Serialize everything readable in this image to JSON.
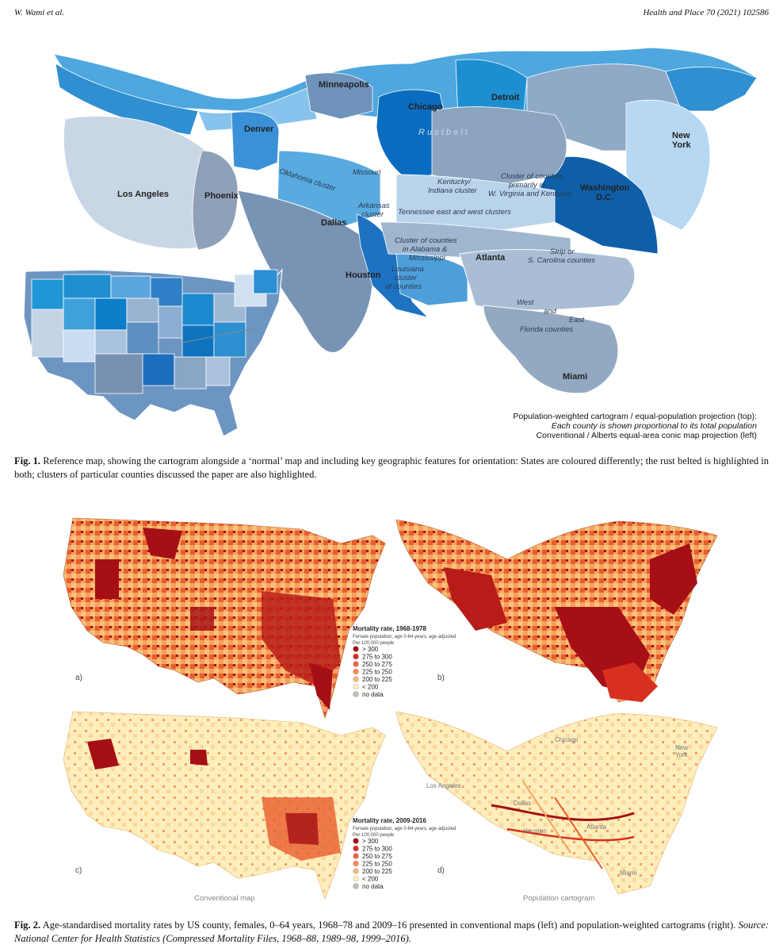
{
  "header": {
    "left": "W. Wami et al.",
    "right": "Health and Place 70 (2021) 102586"
  },
  "fig1": {
    "cities": {
      "minneapolis": "Minneapolis",
      "chicago": "Chicago",
      "detroit": "Detroit",
      "denver": "Denver",
      "new_york": "New\nYork",
      "los_angeles": "Los Angeles",
      "phoenix": "Phoenix",
      "washington": "Washington\nD.C.",
      "dallas": "Dallas",
      "houston": "Houston",
      "atlanta": "Atlanta",
      "miami": "Miami"
    },
    "clusters": {
      "rust_belt": "R u s t   b e l t",
      "oklahoma": "Oklahoma cluster",
      "missouri": "Missouri",
      "kentucky": "Kentucky/\nIndiana cluster",
      "wv": "Cluster of counties\nprimarily in\nW. Virginia and Kentucky",
      "arkansas": "Arkansas\ncluster",
      "tennessee": "Tennessee east and west clusters",
      "alabama": "Cluster of counties\nin Alabama &\nMississippi",
      "louisiana": "Louisiana\ncluster\nof counties",
      "carolina": "Strip or\nS. Carolina counties",
      "florida_west": "West",
      "florida_and": "and",
      "florida_east": "East",
      "florida_counties": "Florida counties"
    },
    "legend": {
      "line1": "Population-weighted cartogram / equal-population projection (top):",
      "line2": "Each county is shown proportional to its total population",
      "line3": "Conventional / Alberts equal-area conic map projection (left)"
    },
    "caption_label": "Fig. 1.",
    "caption_text": "Reference map, showing the cartogram alongside a ‘normal’ map and including key geographic features for orientation: States are coloured differently; the rust belted is highlighted in both; clusters of particular counties discussed the paper are also highlighted."
  },
  "fig2": {
    "panel_a": "a)",
    "panel_b": "b)",
    "panel_c": "c)",
    "panel_d": "d)",
    "legend_top": {
      "title": "Mortality rate, 1968-1978",
      "sub1": "Female population, age 0-64 years, age adjusted",
      "sub2": "Per 100,000 people"
    },
    "legend_bottom": {
      "title": "Mortality rate, 2009-2016",
      "sub1": "Female population, age 0-64 years, age adjusted",
      "sub2": "Per 100,000 people"
    },
    "legend_items": [
      {
        "label": "> 300",
        "color": "#a50f15"
      },
      {
        "label": "275 to 300",
        "color": "#d7301f"
      },
      {
        "label": "250 to 275",
        "color": "#ef6548"
      },
      {
        "label": "225 to 250",
        "color": "#fc8d59"
      },
      {
        "label": "200 to 225",
        "color": "#fdbb84"
      },
      {
        "label": "< 200",
        "color": "#fef0c0"
      },
      {
        "label": "no data",
        "color": "#bdbdbd"
      }
    ],
    "cartogram_cities": {
      "chicago": "Chicago",
      "new_york": "New\nYork",
      "los_angeles": "Los Angeles",
      "dallas": "Dallas",
      "houston": "Houston",
      "atlanta": "Atlanta",
      "miami": "Miami"
    },
    "bottom_left_label": "Conventional map",
    "bottom_right_label": "Population cartogram",
    "caption_label": "Fig. 2.",
    "caption_text": "Age-standardised mortality rates by US county, females, 0–64 years, 1968–78 and 2009–16 presented in conventional maps (left) and population-weighted cartograms (right).",
    "caption_source": "Source: National Center for Health Statistics (Compressed Mortality Files, 1968–88, 1989–98, 1999–2016)."
  }
}
